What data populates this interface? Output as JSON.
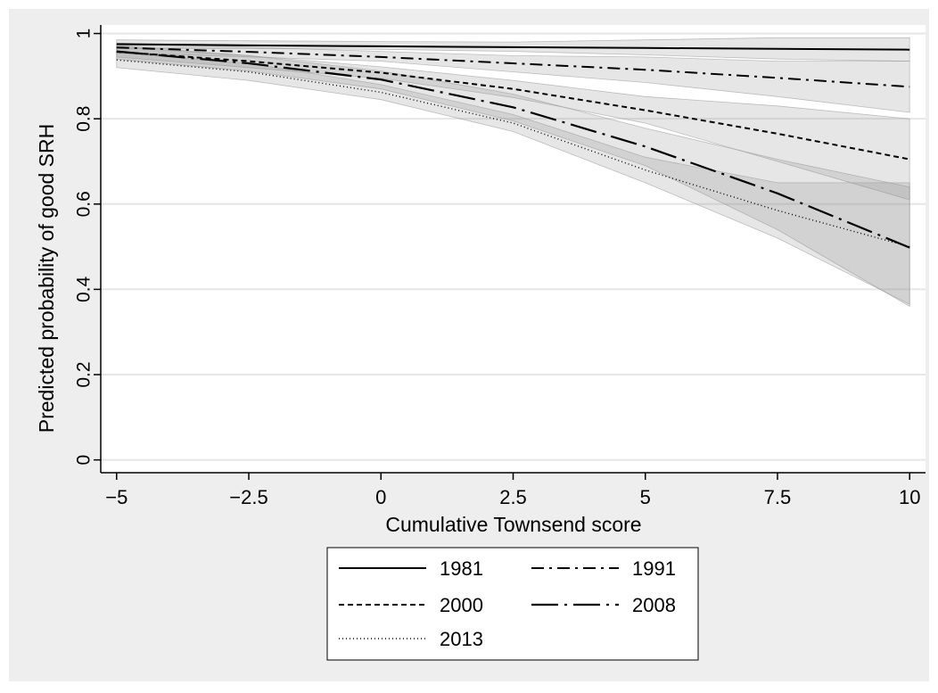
{
  "chart_data": {
    "type": "line",
    "xlabel": "Cumulative Townsend score",
    "ylabel": "Predicted probability of good SRH",
    "xlim": [
      -5.3,
      10.3
    ],
    "ylim": [
      -0.03,
      1.02
    ],
    "xticks": [
      -5,
      -2.5,
      0,
      2.5,
      5,
      7.5,
      10
    ],
    "xtick_labels": [
      "−5",
      "−2.5",
      "0",
      "2.5",
      "5",
      "7.5",
      "10"
    ],
    "yticks": [
      0,
      0.2,
      0.4,
      0.6,
      0.8,
      1
    ],
    "ytick_labels": [
      "0",
      "0.2",
      "0.4",
      "0.6",
      "0.8",
      "1"
    ],
    "grid": true,
    "legend_position": "bottom",
    "x": [
      -5,
      -2.5,
      0,
      2.5,
      5,
      7.5,
      10
    ],
    "series": [
      {
        "name": "1981",
        "style": "solid",
        "values": [
          0.975,
          0.972,
          0.97,
          0.968,
          0.966,
          0.964,
          0.962
        ],
        "ci_low": [
          0.965,
          0.965,
          0.963,
          0.958,
          0.95,
          0.94,
          0.935
        ],
        "ci_high": [
          0.985,
          0.983,
          0.981,
          0.98,
          0.985,
          0.99,
          0.99
        ]
      },
      {
        "name": "1991",
        "style": "dashdot",
        "values": [
          0.967,
          0.957,
          0.945,
          0.93,
          0.915,
          0.896,
          0.875
        ],
        "ci_low": [
          0.955,
          0.945,
          0.935,
          0.91,
          0.885,
          0.852,
          0.815
        ],
        "ci_high": [
          0.978,
          0.968,
          0.958,
          0.948,
          0.945,
          0.935,
          0.935
        ]
      },
      {
        "name": "2000",
        "style": "shortdash",
        "values": [
          0.957,
          0.935,
          0.908,
          0.87,
          0.82,
          0.765,
          0.705
        ],
        "ci_low": [
          0.945,
          0.92,
          0.895,
          0.85,
          0.79,
          0.7,
          0.61
        ],
        "ci_high": [
          0.968,
          0.948,
          0.922,
          0.89,
          0.852,
          0.83,
          0.8
        ]
      },
      {
        "name": "2008",
        "style": "longdashdot",
        "values": [
          0.958,
          0.93,
          0.892,
          0.827,
          0.735,
          0.625,
          0.498
        ],
        "ci_low": [
          0.94,
          0.912,
          0.87,
          0.795,
          0.69,
          0.54,
          0.36
        ],
        "ci_high": [
          0.972,
          0.948,
          0.912,
          0.858,
          0.778,
          0.705,
          0.64
        ]
      },
      {
        "name": "2013",
        "style": "dotted",
        "values": [
          0.938,
          0.91,
          0.862,
          0.79,
          0.68,
          0.585,
          0.5
        ],
        "ci_low": [
          0.92,
          0.89,
          0.845,
          0.77,
          0.65,
          0.52,
          0.365
        ],
        "ci_high": [
          0.955,
          0.93,
          0.88,
          0.81,
          0.71,
          0.65,
          0.65
        ]
      }
    ]
  }
}
